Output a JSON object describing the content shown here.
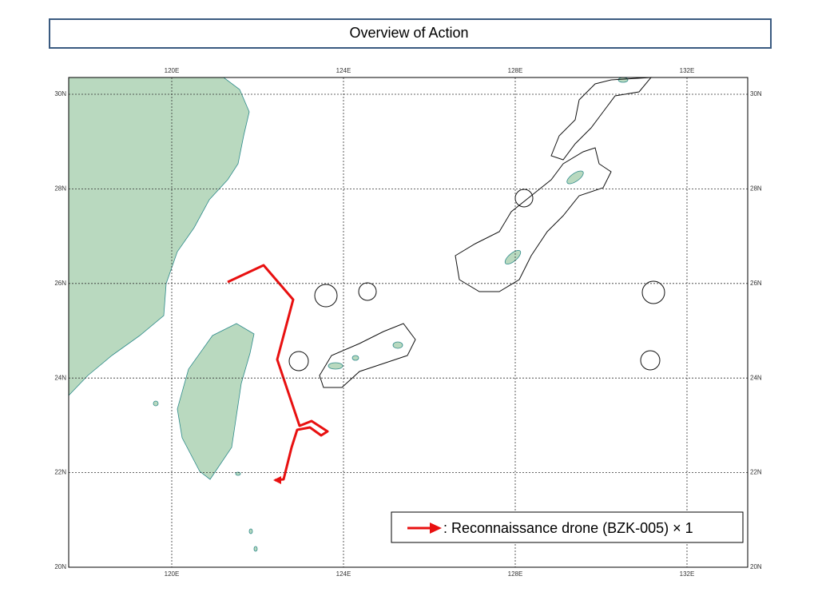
{
  "header": {
    "title": "Overview of Action"
  },
  "map": {
    "lon_ticks": [
      {
        "value": 120,
        "label": "120E"
      },
      {
        "value": 124,
        "label": "124E"
      },
      {
        "value": 128,
        "label": "128E"
      },
      {
        "value": 132,
        "label": "132E"
      }
    ],
    "lat_ticks": [
      {
        "value": 30,
        "label": "30N"
      },
      {
        "value": 28,
        "label": "28N"
      },
      {
        "value": 26,
        "label": "26N"
      },
      {
        "value": 24,
        "label": "24N"
      },
      {
        "value": 22,
        "label": "22N"
      },
      {
        "value": 20,
        "label": "20N"
      }
    ],
    "legend": {
      "label": ": Reconnaissance drone (BZK-005) × 1"
    }
  }
}
